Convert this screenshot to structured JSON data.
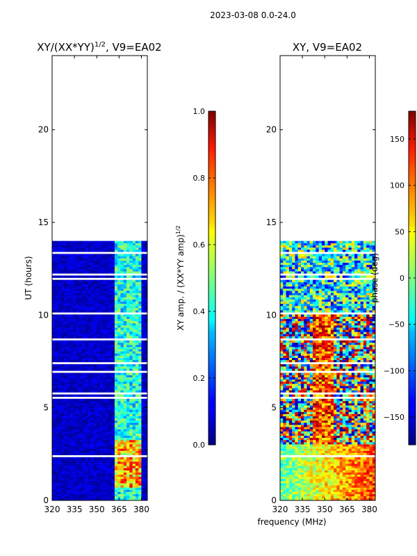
{
  "suptitle": "2023-03-08 0.0-24.0",
  "shared_xlabel": "frequency (MHz)",
  "chart_data": [
    {
      "type": "heatmap",
      "title_main": "XY/(XX*YY)",
      "title_sup": "1/2",
      "title_tail": ", V9=EA02",
      "ylabel": "UT (hours)",
      "xlim": [
        320,
        384
      ],
      "ylim": [
        0,
        24
      ],
      "xticks": [
        320,
        335,
        350,
        365,
        380
      ],
      "xtick_labels": [
        "320",
        "335",
        "350",
        "365",
        "380"
      ],
      "yticks": [
        0,
        5,
        10,
        15,
        20
      ],
      "ytick_labels": [
        "0",
        "5",
        "10",
        "15",
        "20"
      ],
      "data_time_range": [
        0,
        14
      ],
      "colorbar": {
        "label_main": "XY amp. / (XX*YY amp)",
        "label_sup": "1/2",
        "min": 0.0,
        "max": 1.0,
        "ticks": [
          0.0,
          0.2,
          0.4,
          0.6,
          0.8,
          1.0
        ],
        "tick_labels": [
          "0.0",
          "0.2",
          "0.4",
          "0.6",
          "0.8",
          "1.0"
        ],
        "colormap": "jet"
      }
    },
    {
      "type": "heatmap",
      "title_main": "XY, V9=EA02",
      "ylabel": "",
      "xlim": [
        320,
        384
      ],
      "ylim": [
        0,
        24
      ],
      "xticks": [
        320,
        335,
        350,
        365,
        380
      ],
      "xtick_labels": [
        "320",
        "335",
        "350",
        "365",
        "380"
      ],
      "yticks": [
        0,
        5,
        10,
        15,
        20
      ],
      "ytick_labels": [
        "0",
        "5",
        "10",
        "15",
        "20"
      ],
      "data_time_range": [
        0,
        14
      ],
      "colorbar": {
        "label_main": "phase (deg)",
        "min": -180,
        "max": 180,
        "ticks": [
          -150,
          -100,
          -50,
          0,
          50,
          100,
          150
        ],
        "tick_labels": [
          "−150",
          "−100",
          "−50",
          "0",
          "50",
          "100",
          "150"
        ],
        "colormap": "jet"
      }
    }
  ]
}
